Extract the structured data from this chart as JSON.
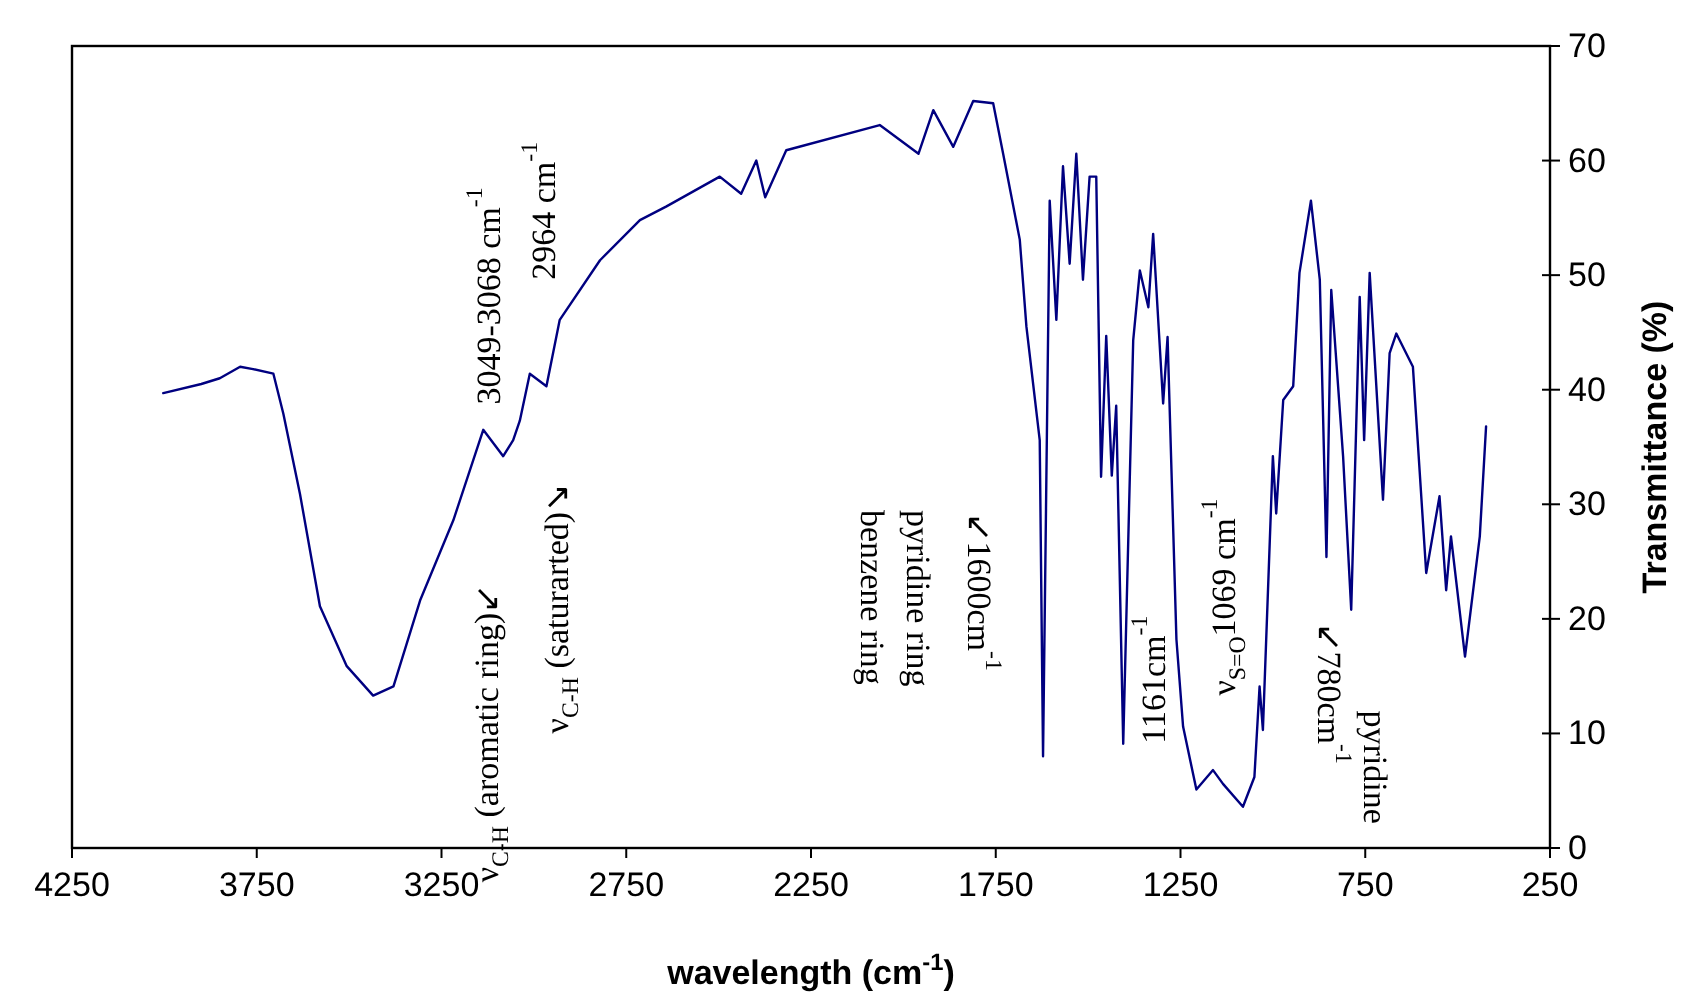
{
  "chart_data": {
    "type": "line",
    "xlabel": "wavelength (cm$^{-1}$)",
    "ylabel": "Transmittance (%)",
    "xlim": [
      4250,
      250
    ],
    "xticks": [
      4250,
      3750,
      3250,
      2750,
      2250,
      1750,
      1250,
      750,
      250
    ],
    "ylim": [
      0,
      70
    ],
    "yticks": [
      0,
      10,
      20,
      30,
      40,
      50,
      60,
      70
    ],
    "grid": false,
    "marker": "none",
    "line_style": "solid",
    "series": [
      {
        "color": "#000080",
        "x": [
          4003,
          3900,
          3850,
          3795,
          3760,
          3705,
          3678,
          3633,
          3579,
          3507,
          3435,
          3380,
          3308,
          3218,
          3137,
          3083,
          3056,
          3038,
          3011,
          2966,
          2930,
          2821,
          2713,
          2641,
          2497,
          2439,
          2398,
          2374,
          2317,
          2064,
          1959,
          1919,
          1865,
          1811,
          1757,
          1730,
          1685,
          1667,
          1631,
          1622,
          1604,
          1586,
          1568,
          1550,
          1532,
          1514,
          1496,
          1478,
          1465,
          1451,
          1436,
          1424,
          1405,
          1378,
          1360,
          1337,
          1324,
          1297,
          1285,
          1261,
          1243,
          1207,
          1162,
          1135,
          1081,
          1050,
          1036,
          1027,
          1000,
          991,
          972,
          945,
          928,
          897,
          873,
          855,
          842,
          810,
          788,
          765,
          753,
          738,
          702,
          684,
          666,
          621,
          585,
          549,
          531,
          518,
          480,
          440,
          423
        ],
        "values": [
          39.7,
          40.5,
          41.0,
          42.0,
          41.8,
          41.4,
          37.9,
          30.9,
          21.1,
          15.9,
          13.3,
          14.1,
          21.6,
          28.6,
          36.5,
          34.2,
          35.6,
          37.3,
          41.4,
          40.3,
          46.1,
          51.3,
          54.8,
          56.0,
          58.6,
          57.1,
          60.0,
          56.8,
          60.9,
          63.1,
          60.6,
          64.4,
          61.2,
          65.2,
          65.0,
          60.6,
          53.1,
          45.5,
          35.6,
          8.0,
          56.5,
          46.1,
          59.5,
          51.0,
          60.6,
          49.6,
          58.6,
          58.6,
          32.4,
          44.7,
          32.5,
          38.6,
          9.1,
          44.3,
          50.4,
          47.2,
          53.6,
          38.8,
          44.6,
          18.2,
          10.6,
          5.1,
          6.8,
          5.6,
          3.6,
          6.2,
          14.1,
          10.3,
          34.2,
          29.2,
          39.1,
          40.3,
          50.2,
          56.5,
          49.6,
          25.4,
          48.7,
          34.2,
          20.8,
          48.1,
          35.6,
          50.2,
          30.4,
          43.2,
          44.9,
          42.0,
          24.0,
          30.7,
          22.5,
          27.2,
          16.7,
          27.2,
          36.8
        ]
      }
    ],
    "annotations": [
      "3049-3068 cm$^{-1}$",
      "ν$_{C-H}$ (aromatic ring)↙",
      "2964 cm$^{-1}$",
      "ν$_{C-H}$ (saturarted)↘",
      "↙1600cm$^{-1}$",
      "pyridine ring",
      "benzene ring",
      "1161cm$^{-1}$",
      "ν$_{S=O}$1069 cm$^{-1}$",
      "↙780cm$^{-1}$",
      "pyridine"
    ]
  }
}
